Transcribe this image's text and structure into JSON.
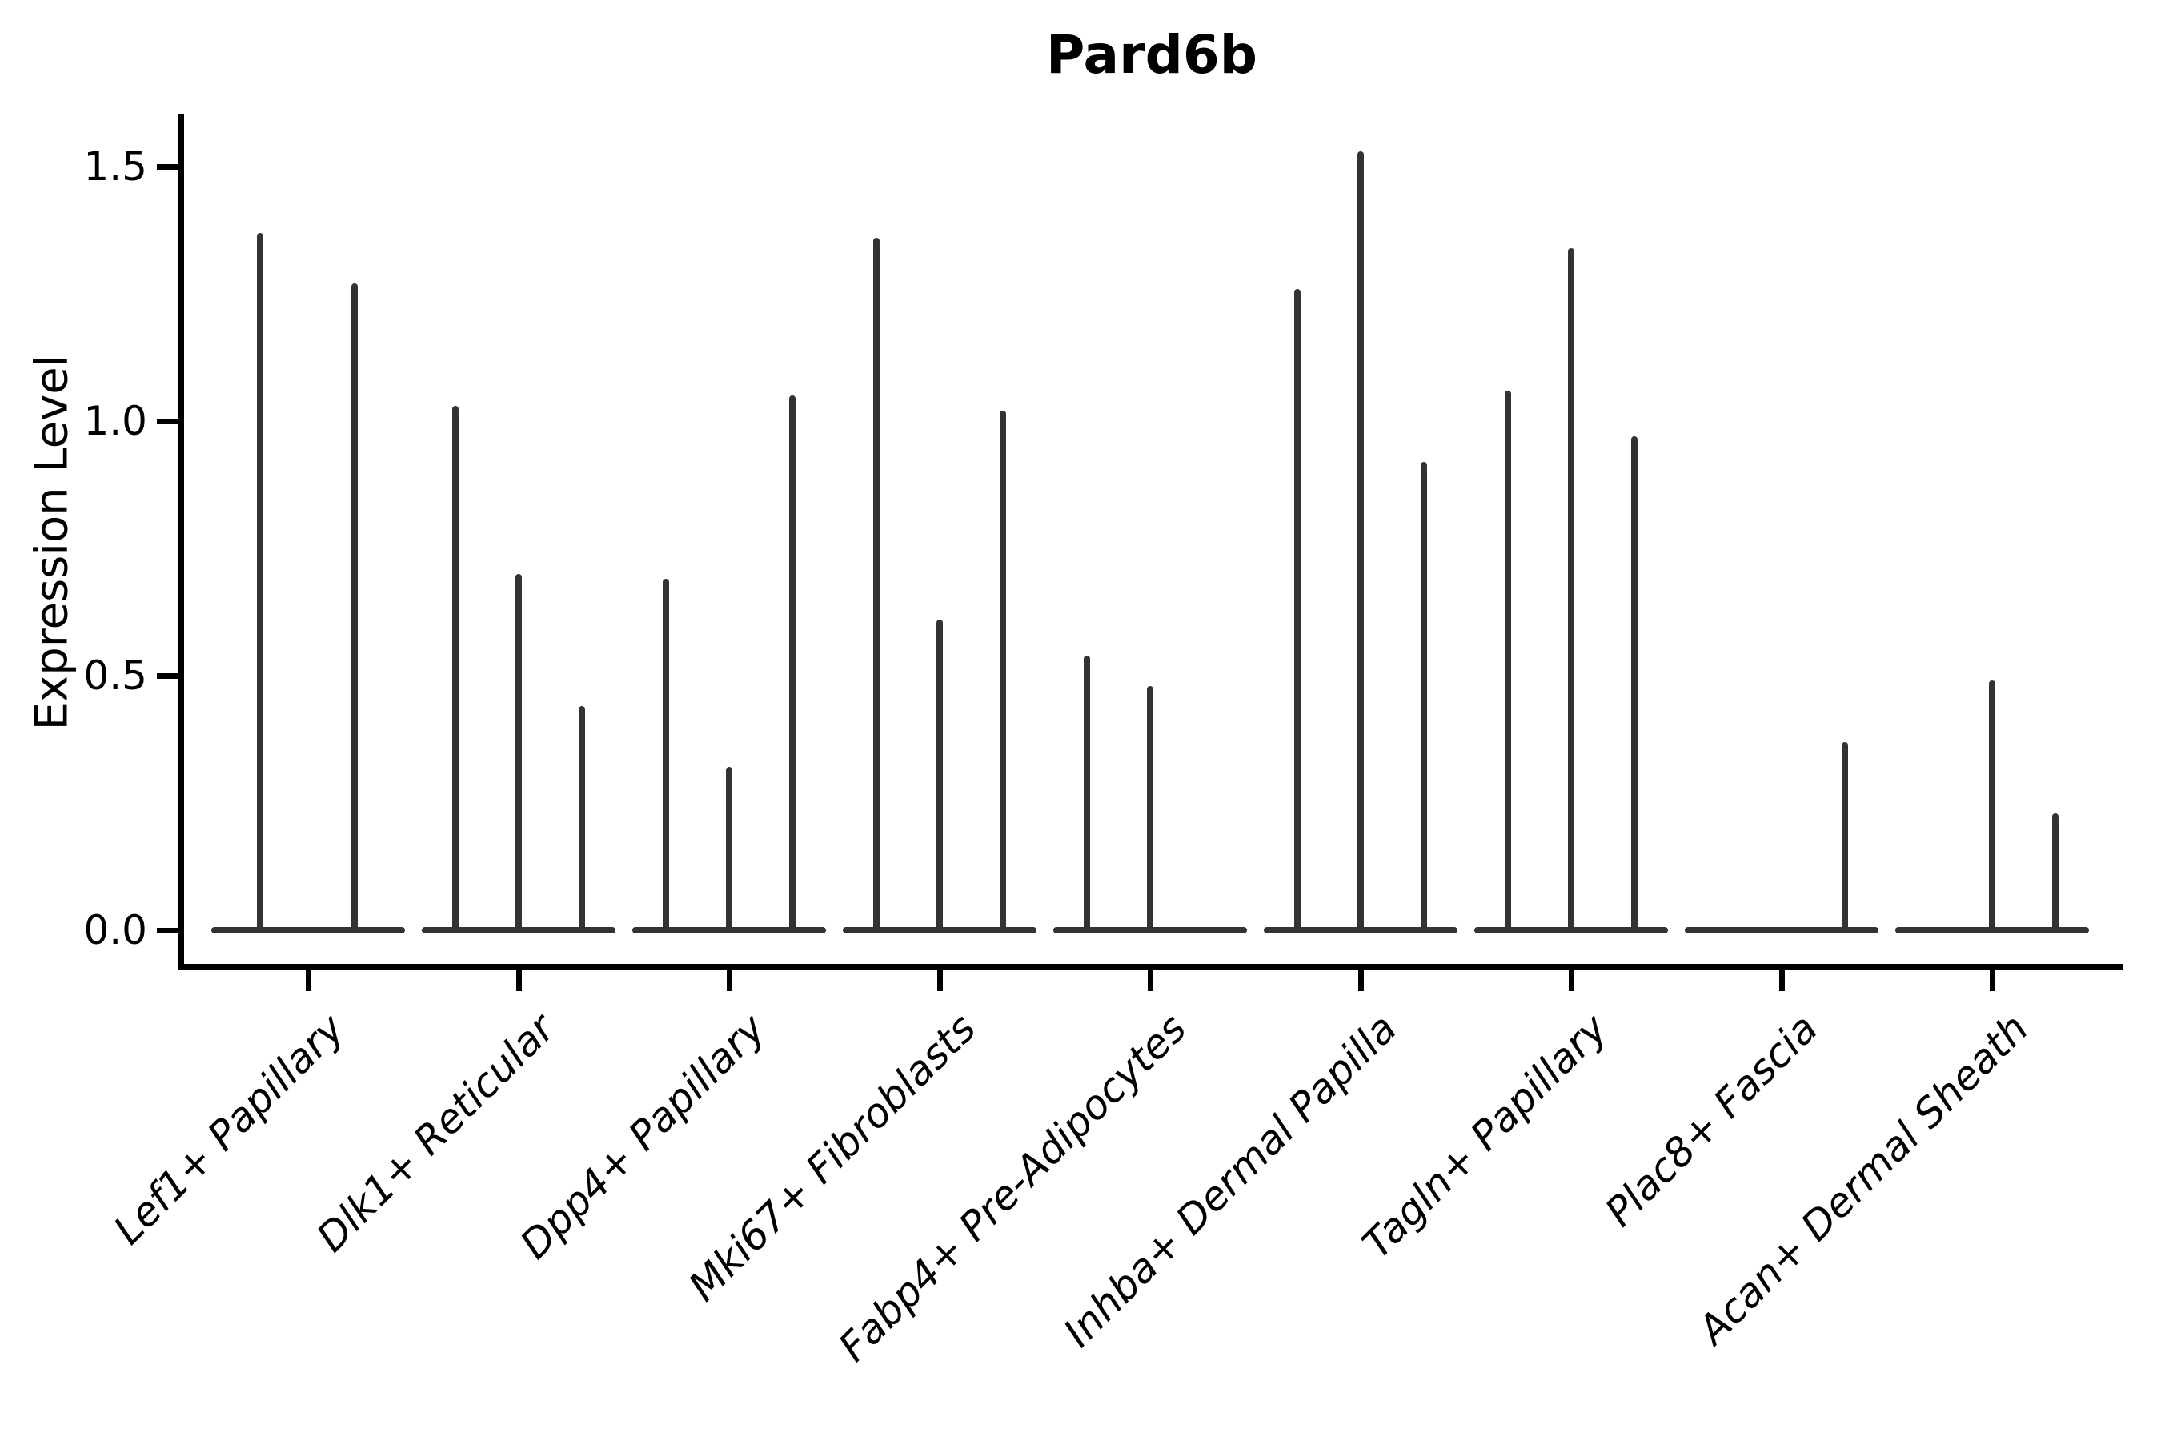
{
  "chart_data": {
    "type": "violin",
    "title": "Pard6b",
    "ylabel": "Expression Level",
    "xlabel": "",
    "legend": "none",
    "grid": "off",
    "background_color": "#ffffff",
    "violin_color": "#333333",
    "axis_color": "#000000",
    "ylim": [
      -0.07,
      1.6
    ],
    "yticks": [
      {
        "value": 0.0,
        "label": "0.0"
      },
      {
        "value": 0.5,
        "label": "0.5"
      },
      {
        "value": 1.0,
        "label": "1.0"
      },
      {
        "value": 1.5,
        "label": "1.5"
      }
    ],
    "categories": [
      "Lef1+ Papillary",
      "Dlk1+ Reticular",
      "Dpp4+ Papillary",
      "Mki67+ Fibroblasts",
      "Fabp4+ Pre-Adipocytes",
      "Inhba+ Dermal Papilla",
      "Tagln+ Papillary",
      "Plac8+ Fascia",
      "Acan+ Dermal Sheath"
    ],
    "groups": [
      {
        "category": "Lef1+ Papillary",
        "violins": [
          {
            "offset": -60,
            "max": 1.37
          },
          {
            "offset": 58,
            "max": 1.27
          }
        ]
      },
      {
        "category": "Dlk1+ Reticular",
        "violins": [
          {
            "offset": -79,
            "max": 1.03
          },
          {
            "offset": 0,
            "max": 0.7
          },
          {
            "offset": 79,
            "max": 0.44
          }
        ]
      },
      {
        "category": "Dpp4+ Papillary",
        "violins": [
          {
            "offset": -79,
            "max": 0.69
          },
          {
            "offset": 0,
            "max": 0.32
          },
          {
            "offset": 79,
            "max": 1.05
          }
        ]
      },
      {
        "category": "Mki67+ Fibroblasts",
        "violins": [
          {
            "offset": -79,
            "max": 1.36
          },
          {
            "offset": 0,
            "max": 0.61
          },
          {
            "offset": 79,
            "max": 1.02
          }
        ]
      },
      {
        "category": "Fabp4+ Pre-Adipocytes",
        "violins": [
          {
            "offset": -79,
            "max": 0.54
          },
          {
            "offset": 0,
            "max": 0.48
          }
        ]
      },
      {
        "category": "Inhba+ Dermal Papilla",
        "violins": [
          {
            "offset": -79,
            "max": 1.26
          },
          {
            "offset": 0,
            "max": 1.53
          },
          {
            "offset": 79,
            "max": 0.92
          }
        ]
      },
      {
        "category": "Tagln+ Papillary",
        "violins": [
          {
            "offset": -79,
            "max": 1.06
          },
          {
            "offset": 0,
            "max": 1.34
          },
          {
            "offset": 79,
            "max": 0.97
          }
        ]
      },
      {
        "category": "Plac8+ Fascia",
        "violins": [
          {
            "offset": 79,
            "max": 0.37
          }
        ]
      },
      {
        "category": "Acan+ Dermal Sheath",
        "violins": [
          {
            "offset": 0,
            "max": 0.49
          },
          {
            "offset": 79,
            "max": 0.23
          }
        ]
      }
    ]
  }
}
